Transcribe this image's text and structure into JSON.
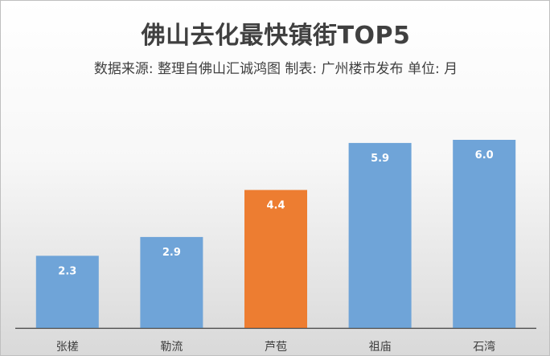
{
  "chart_data": {
    "type": "bar",
    "title": "佛山去化最快镇街TOP5",
    "subtitle": "数据来源: 整理自佛山汇诚鸿图   制表: 广州楼市发布   单位: 月",
    "categories": [
      "张槎",
      "勒流",
      "芦苞",
      "祖庙",
      "石湾"
    ],
    "values": [
      2.3,
      2.9,
      4.4,
      5.9,
      6.0
    ],
    "value_labels": [
      "2.3",
      "2.9",
      "4.4",
      "5.9",
      "6.0"
    ],
    "highlight_index": 2,
    "ylim": [
      0,
      7.5
    ],
    "grid": false,
    "legend": "none",
    "colors": {
      "bar": "#6fa4d8",
      "highlight": "#ed7d31",
      "label_text": "#ffffff",
      "axis": "#404040",
      "text": "#404040"
    }
  }
}
